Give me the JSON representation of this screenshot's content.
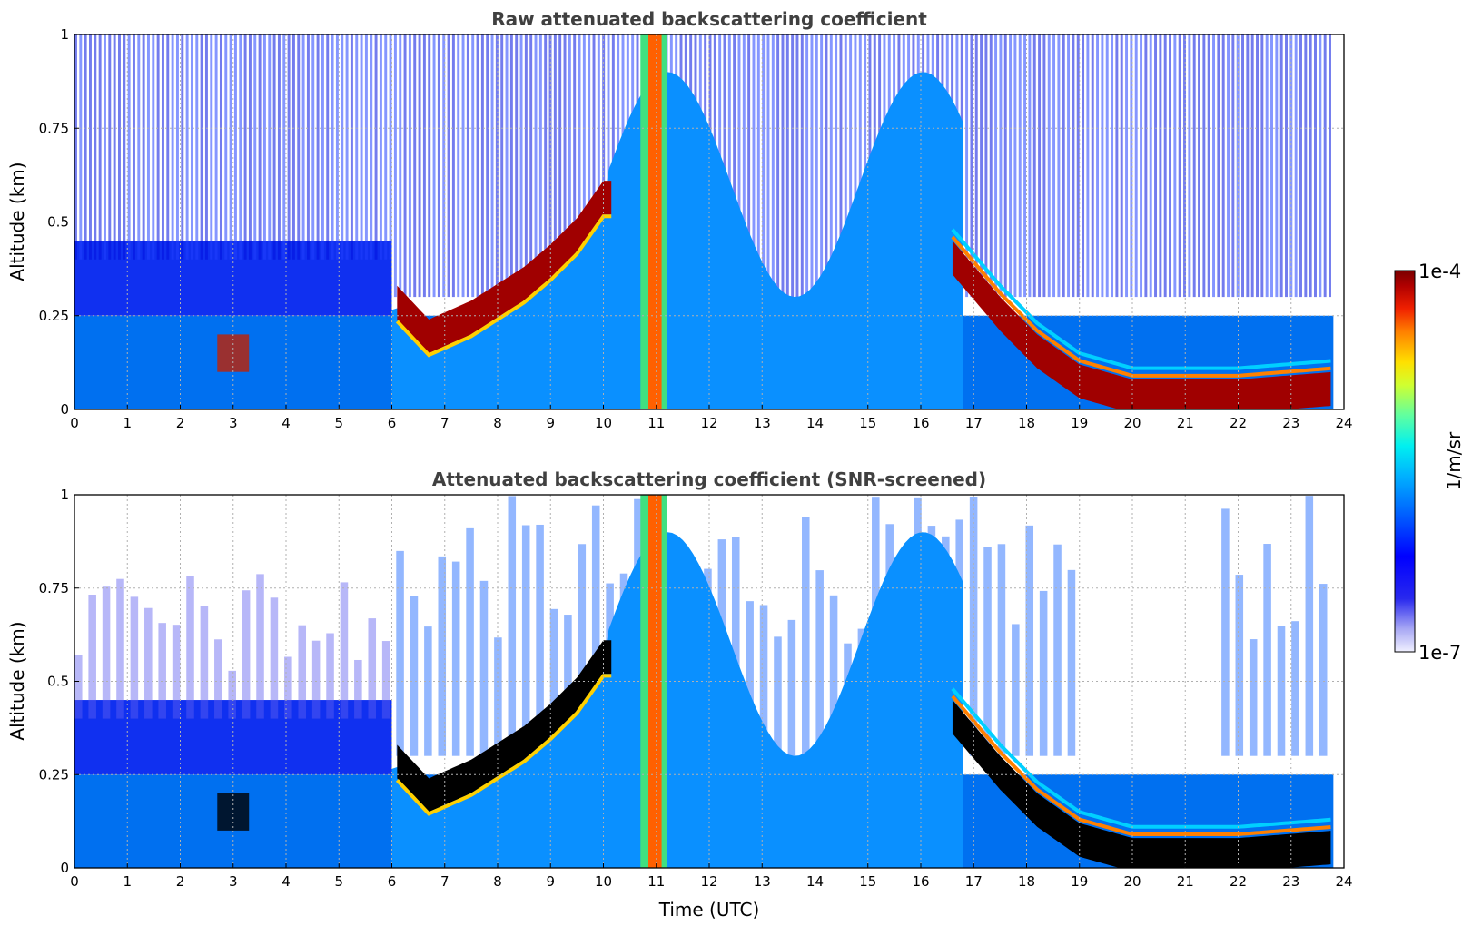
{
  "chart_data": [
    {
      "type": "heatmap",
      "title": "Raw attenuated backscattering coefficient",
      "xlabel": "",
      "ylabel": "Altitude (km)",
      "xlim": [
        0,
        24
      ],
      "ylim": [
        0,
        1
      ],
      "x_ticks": [
        0,
        1,
        2,
        3,
        4,
        5,
        6,
        7,
        8,
        9,
        10,
        11,
        12,
        13,
        14,
        15,
        16,
        17,
        18,
        19,
        20,
        21,
        22,
        23,
        24
      ],
      "y_ticks": [
        0,
        0.25,
        0.5,
        0.75,
        1
      ],
      "y_tick_labels": [
        "0",
        "0.25",
        "0.5",
        "0.75",
        "1"
      ],
      "grid": true,
      "screened": false,
      "colormap": "jet",
      "features": {
        "boundary_layer_top_km": [
          [
            6.1,
            0.27
          ],
          [
            6.7,
            0.18
          ],
          [
            7.5,
            0.23
          ],
          [
            8.5,
            0.32
          ],
          [
            9.0,
            0.38
          ],
          [
            9.5,
            0.45
          ],
          [
            10.0,
            0.55
          ]
        ],
        "vertical_plume_utc": [
          10.7,
          11.2
        ],
        "descending_layer_km": [
          [
            16.6,
            0.45
          ],
          [
            17.5,
            0.3
          ],
          [
            18.2,
            0.2
          ],
          [
            19.0,
            0.12
          ],
          [
            20.0,
            0.08
          ],
          [
            22.0,
            0.08
          ],
          [
            23.8,
            0.1
          ]
        ],
        "fog_base_layer_utc": [
          2.7,
          3.3
        ]
      }
    },
    {
      "type": "heatmap",
      "title": "Attenuated backscattering coefficient (SNR-screened)",
      "xlabel": "Time (UTC)",
      "ylabel": "Altitude (km)",
      "xlim": [
        0,
        24
      ],
      "ylim": [
        0,
        1
      ],
      "x_ticks": [
        0,
        1,
        2,
        3,
        4,
        5,
        6,
        7,
        8,
        9,
        10,
        11,
        12,
        13,
        14,
        15,
        16,
        17,
        18,
        19,
        20,
        21,
        22,
        23,
        24
      ],
      "y_ticks": [
        0,
        0.25,
        0.5,
        0.75,
        1
      ],
      "y_tick_labels": [
        "0",
        "0.25",
        "0.5",
        "0.75",
        "1"
      ],
      "grid": true,
      "screened": true,
      "colormap": "jet",
      "features": {
        "boundary_layer_top_km": [
          [
            6.1,
            0.27
          ],
          [
            6.7,
            0.18
          ],
          [
            7.5,
            0.23
          ],
          [
            8.5,
            0.32
          ],
          [
            9.0,
            0.38
          ],
          [
            9.5,
            0.45
          ],
          [
            10.0,
            0.55
          ]
        ],
        "vertical_plume_utc": [
          10.7,
          11.2
        ],
        "descending_layer_km": [
          [
            16.6,
            0.45
          ],
          [
            17.5,
            0.3
          ],
          [
            18.2,
            0.2
          ],
          [
            19.0,
            0.12
          ],
          [
            20.0,
            0.08
          ],
          [
            22.0,
            0.08
          ],
          [
            23.8,
            0.1
          ]
        ],
        "fog_base_layer_utc": [
          2.7,
          3.3
        ]
      }
    }
  ],
  "colorbar": {
    "label": "1/m/sr",
    "max_label": "1e-4",
    "min_label": "1e-7",
    "scale": "log",
    "range": [
      1e-07,
      0.0001
    ],
    "colors": [
      "#f0f0ff",
      "#c8c8f8",
      "#8080f0",
      "#2020e8",
      "#0000ff",
      "#0050ff",
      "#00a0ff",
      "#00e0f0",
      "#40ffc0",
      "#a0ff60",
      "#f0ff00",
      "#ffc000",
      "#ff6000",
      "#e01000",
      "#a00000",
      "#7a0000"
    ]
  }
}
